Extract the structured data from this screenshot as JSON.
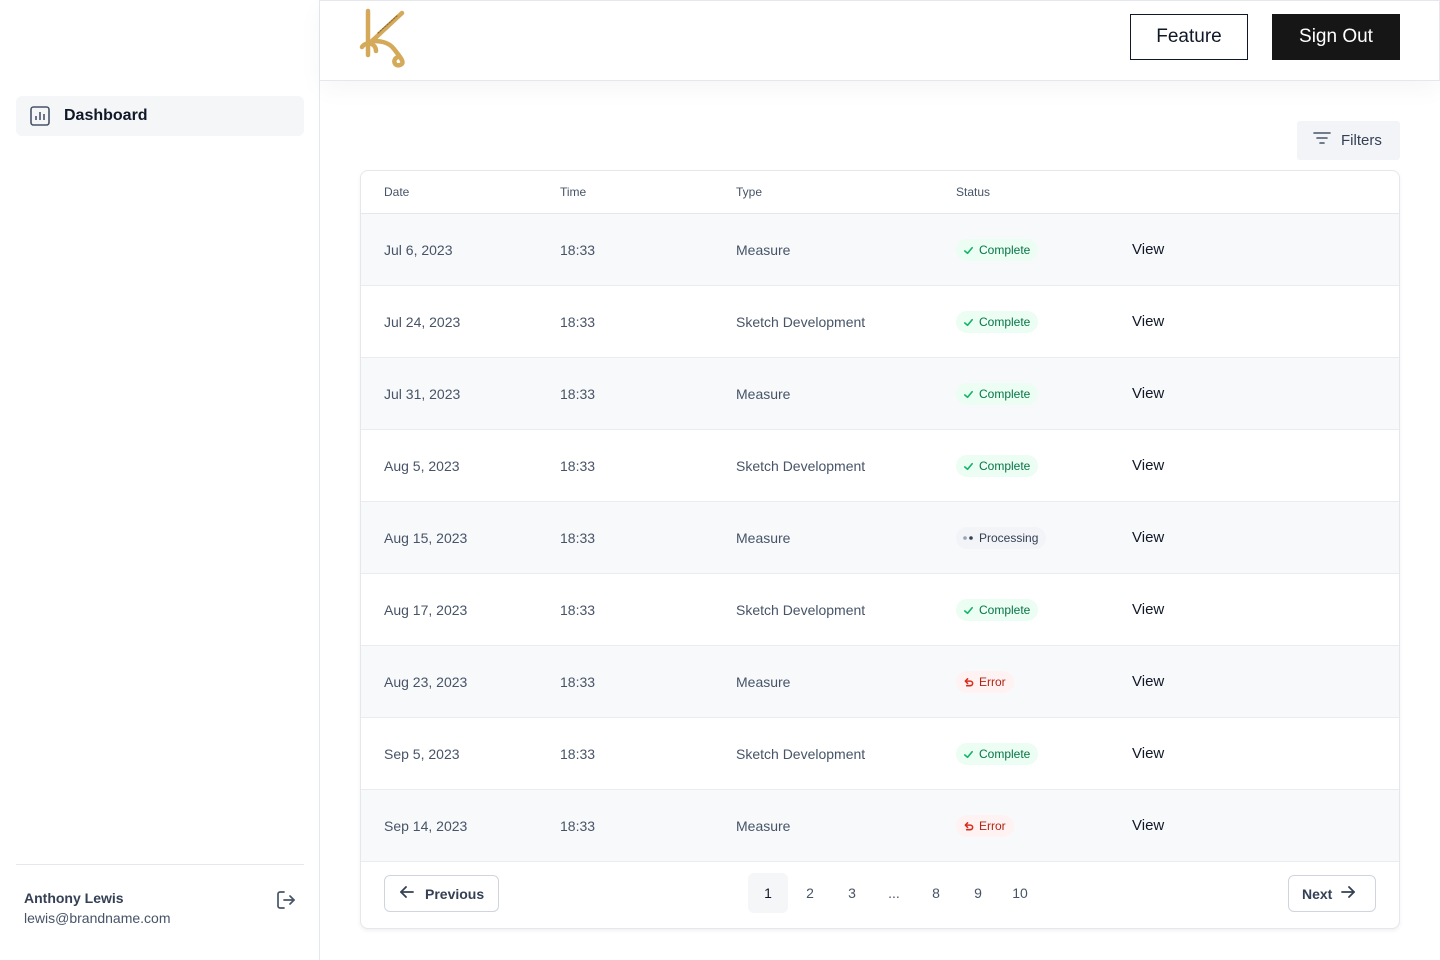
{
  "sidebar": {
    "nav": [
      {
        "label": "Dashboard",
        "icon": "bar-chart-icon"
      }
    ],
    "user": {
      "name": "Anthony Lewis",
      "email": "lewis@brandname.com"
    }
  },
  "header": {
    "feature_label": "Feature",
    "signout_label": "Sign Out"
  },
  "toolbar": {
    "filters_label": "Filters"
  },
  "table": {
    "columns": [
      "Date",
      "Time",
      "Type",
      "Status"
    ],
    "view_label": "View",
    "rows": [
      {
        "date": "Jul 6, 2023",
        "time": "18:33",
        "type": "Measure",
        "status": "Complete"
      },
      {
        "date": "Jul 24, 2023",
        "time": "18:33",
        "type": "Sketch Development",
        "status": "Complete"
      },
      {
        "date": "Jul 31, 2023",
        "time": "18:33",
        "type": "Measure",
        "status": "Complete"
      },
      {
        "date": "Aug 5, 2023",
        "time": "18:33",
        "type": "Sketch Development",
        "status": "Complete"
      },
      {
        "date": "Aug 15, 2023",
        "time": "18:33",
        "type": "Measure",
        "status": "Processing"
      },
      {
        "date": "Aug 17, 2023",
        "time": "18:33",
        "type": "Sketch Development",
        "status": "Complete"
      },
      {
        "date": "Aug 23, 2023",
        "time": "18:33",
        "type": "Measure",
        "status": "Error"
      },
      {
        "date": "Sep 5, 2023",
        "time": "18:33",
        "type": "Sketch Development",
        "status": "Complete"
      },
      {
        "date": "Sep 14, 2023",
        "time": "18:33",
        "type": "Measure",
        "status": "Error"
      }
    ]
  },
  "pagination": {
    "previous_label": "Previous",
    "next_label": "Next",
    "pages": [
      "1",
      "2",
      "3",
      "...",
      "8",
      "9",
      "10"
    ],
    "current": "1"
  },
  "colors": {
    "accent": "#161616",
    "logo_gold": "#d4a95a",
    "complete": "#067647",
    "error": "#b42318"
  }
}
